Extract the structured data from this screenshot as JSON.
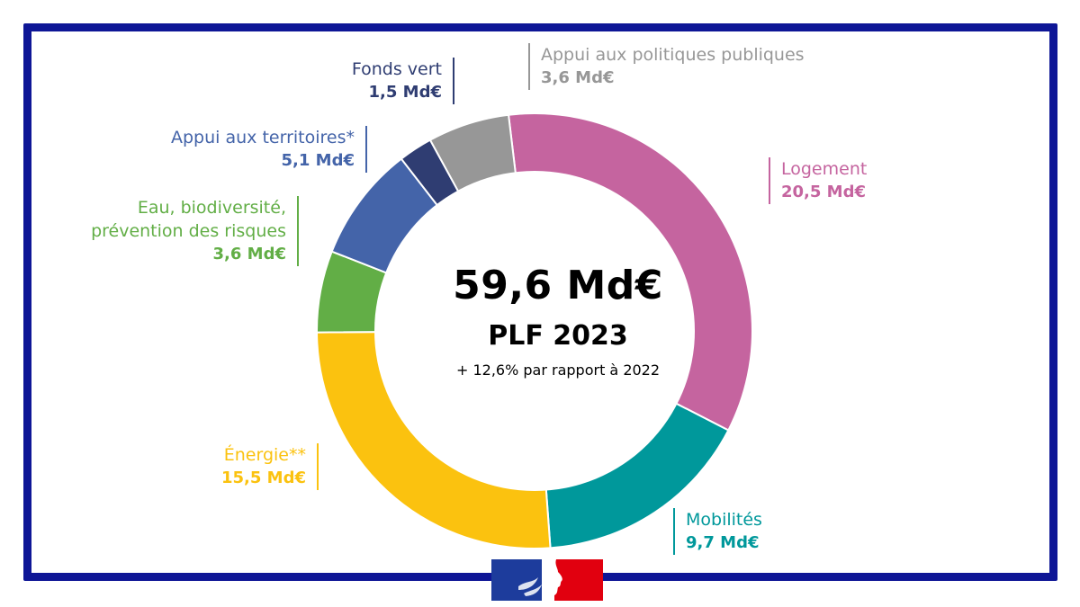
{
  "chart_data": {
    "type": "pie",
    "variant": "donut",
    "center": {
      "total": "59,6 Md€",
      "subtitle": "PLF 2023",
      "note": "+ 12,6% par rapport à 2022"
    },
    "slices": [
      {
        "label": "Logement",
        "value": 20.5,
        "value_label": "20,5 Md€",
        "color": "#c5649f"
      },
      {
        "label": "Mobilités",
        "value": 9.7,
        "value_label": "9,7 Md€",
        "color": "#00989b"
      },
      {
        "label": "Énergie**",
        "value": 15.5,
        "value_label": "15,5 Md€",
        "color": "#fbc20f"
      },
      {
        "label": "Eau, biodiversité, prévention des risques",
        "label_lines": [
          "Eau, biodiversité,",
          "prévention des risques"
        ],
        "value": 3.6,
        "value_label": "3,6 Md€",
        "color": "#62ae46"
      },
      {
        "label": "Appui aux territoires*",
        "value": 5.1,
        "value_label": "5,1 Md€",
        "color": "#4464a9"
      },
      {
        "label": "Fonds vert",
        "value": 1.5,
        "value_label": "1,5 Md€",
        "color": "#2f3d72"
      },
      {
        "label": "Appui aux politiques publiques",
        "value": 3.6,
        "value_label": "3,6 Md€",
        "color": "#979797"
      }
    ],
    "legend": "callout labels around the ring"
  },
  "frame_color": "#0e1696",
  "logo": {
    "name": "Marianne",
    "colors": [
      "#1d3c9c",
      "#ffffff",
      "#e1000f"
    ]
  }
}
